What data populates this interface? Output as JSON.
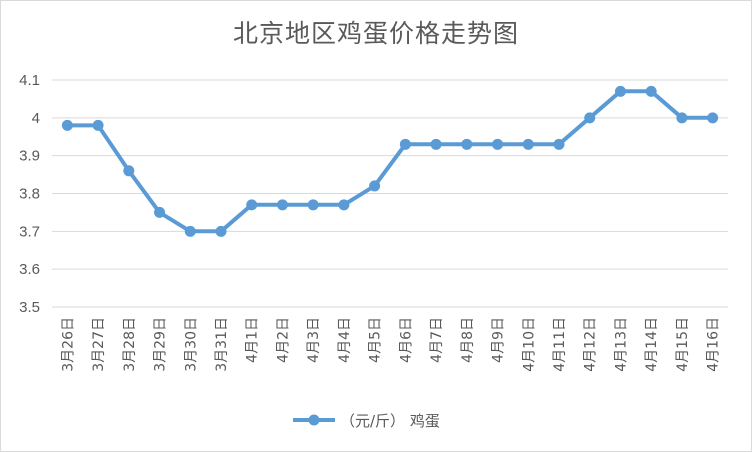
{
  "chart_data": {
    "type": "line",
    "title": "北京地区鸡蛋价格走势图",
    "xlabel": "",
    "ylabel": "",
    "categories": [
      "3月26日",
      "3月27日",
      "3月28日",
      "3月29日",
      "3月30日",
      "3月31日",
      "4月1日",
      "4月2日",
      "4月3日",
      "4月4日",
      "4月5日",
      "4月6日",
      "4月7日",
      "4月8日",
      "4月9日",
      "4月10日",
      "4月11日",
      "4月12日",
      "4月13日",
      "4月14日",
      "4月15日",
      "4月16日"
    ],
    "series": [
      {
        "name": "（元/斤） 鸡蛋",
        "values": [
          3.98,
          3.98,
          3.86,
          3.75,
          3.7,
          3.7,
          3.77,
          3.77,
          3.77,
          3.77,
          3.82,
          3.93,
          3.93,
          3.93,
          3.93,
          3.93,
          3.93,
          4.0,
          4.07,
          4.07,
          4.0,
          4.0
        ],
        "color": "#5b9bd5"
      }
    ],
    "ylim": [
      3.5,
      4.1
    ],
    "yticks": [
      "3.5",
      "3.6",
      "3.7",
      "3.8",
      "3.9",
      "4",
      "4.1"
    ],
    "grid": true,
    "legend": "bottom"
  }
}
